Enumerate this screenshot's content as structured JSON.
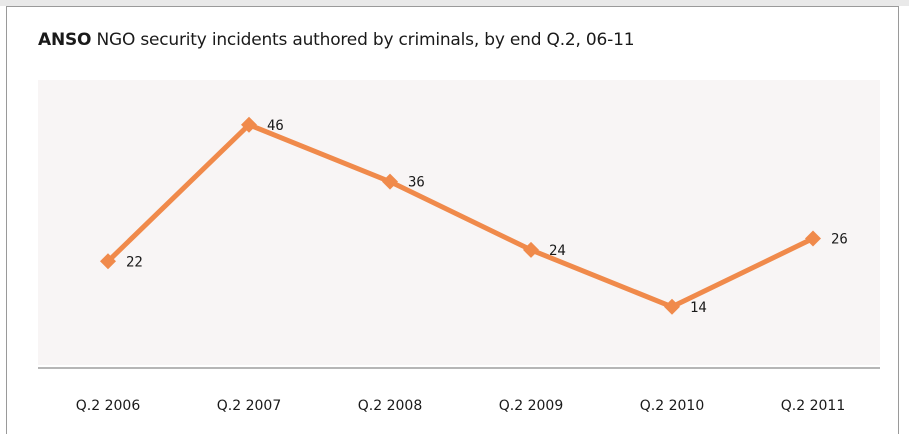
{
  "title": {
    "brand": "ANSO",
    "text": " NGO security incidents authored by criminals, by end Q.2, 06-11"
  },
  "colors": {
    "series": "#f08a4b",
    "plot_bg": "#f8f5f5",
    "axis": "#8a8a8a"
  },
  "chart_data": {
    "type": "line",
    "title": "ANSO NGO security incidents authored by criminals, by end Q.2, 06-11",
    "categories": [
      "Q.2 2006",
      "Q.2 2007",
      "Q.2 2008",
      "Q.2 2009",
      "Q.2 2010",
      "Q.2 2011"
    ],
    "series": [
      {
        "values": [
          22,
          46,
          36,
          24,
          14,
          26
        ]
      }
    ],
    "xlabel": "",
    "ylabel": "",
    "ylim": [
      5,
      50
    ],
    "grid": false,
    "legend": "none",
    "data_labels": true
  }
}
